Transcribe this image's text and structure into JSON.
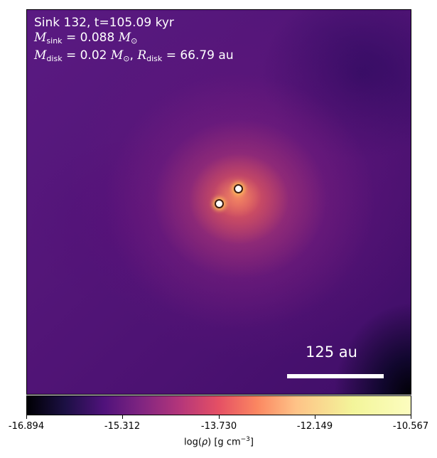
{
  "title": {
    "line1": "Sink 132, t=105.09 kyr",
    "sink_mass_sub": "sink",
    "sink_mass_value": "= 0.088",
    "disk_mass_sub": "disk",
    "disk_mass_value": "= 0.02",
    "disk_radius_sub": "disk",
    "disk_radius_value": "= 66.79",
    "unit_au": "au",
    "msun_symbol": "M",
    "sun_sub": "⊙",
    "r_symbol": "R"
  },
  "scale_bar": {
    "label": "125 au"
  },
  "colorbar": {
    "ticks": [
      "-16.894",
      "-15.312",
      "-13.730",
      "-12.149",
      "-10.567"
    ],
    "label_prefix": "log(",
    "label_rho": "ρ",
    "label_unit": ") [g cm",
    "label_exp": "−3",
    "label_suffix": "]",
    "colormap": "inferno",
    "range": [
      -16.894,
      -10.567
    ]
  },
  "sinks": [
    {
      "name": "sink-a"
    },
    {
      "name": "sink-b"
    }
  ],
  "colors": {
    "background_purple": "#4c1272",
    "marker_fill": "#ffffff"
  }
}
